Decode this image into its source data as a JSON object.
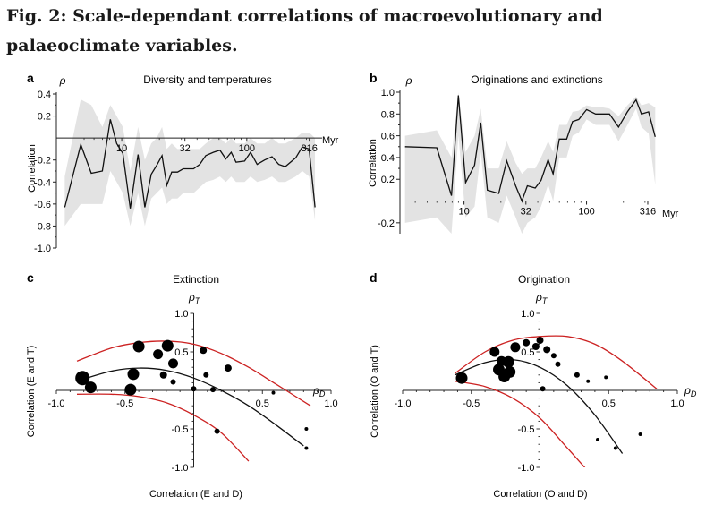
{
  "figure_title": "Fig. 2: Scale-dependant correlations of macroevolutionary and palaeoclimate variables.",
  "chart_data": [
    {
      "panel": "a",
      "type": "line",
      "title": "Diversity and temperatures",
      "ylabel": "Correlation",
      "ysymbol": "ρ",
      "xunit": "Myr",
      "xscale": "log",
      "xlim": [
        3,
        400
      ],
      "ylim": [
        -1.0,
        0.4
      ],
      "xticks": [
        10,
        32,
        100,
        316
      ],
      "yticks": [
        0.4,
        0.2,
        -0.2,
        -0.4,
        -0.6,
        -0.8,
        -1.0
      ],
      "yticklabels": [
        "0.4",
        "0.2",
        "-0.2",
        "-0.4",
        "-0.6",
        "-0.8",
        "-1.0"
      ],
      "series": [
        {
          "x": [
            3.5,
            4.7,
            5.7,
            7.0,
            8.1,
            9.1,
            10.2,
            11.7,
            13.5,
            15.3,
            17.2,
            19.0,
            21.0,
            22.9,
            25.1,
            27.9,
            31.0,
            34.1,
            37.5,
            42.0,
            47.0,
            54.0,
            61.0,
            68.0,
            75.0,
            82.0,
            96.0,
            107.0,
            121.0,
            139.0,
            159.0,
            180.0,
            203.0,
            246.0,
            278.0,
            315.0,
            351.0
          ],
          "y": [
            -0.63,
            -0.06,
            -0.32,
            -0.3,
            0.17,
            -0.05,
            -0.14,
            -0.64,
            -0.15,
            -0.63,
            -0.33,
            -0.25,
            -0.16,
            -0.43,
            -0.31,
            -0.31,
            -0.28,
            -0.28,
            -0.28,
            -0.24,
            -0.16,
            -0.13,
            -0.11,
            -0.19,
            -0.13,
            -0.22,
            -0.21,
            -0.13,
            -0.24,
            -0.2,
            -0.17,
            -0.24,
            -0.26,
            -0.18,
            -0.08,
            -0.1,
            -0.63
          ],
          "band_upper": [
            -0.35,
            0.35,
            0.3,
            0.1,
            0.3,
            0.2,
            0.1,
            -0.3,
            0.1,
            -0.2,
            -0.05,
            0.0,
            0.1,
            -0.1,
            -0.05,
            -0.1,
            -0.1,
            -0.1,
            -0.1,
            -0.1,
            -0.05,
            0.0,
            0.0,
            -0.05,
            0.0,
            -0.05,
            -0.05,
            0.0,
            -0.05,
            -0.05,
            0.0,
            -0.05,
            -0.05,
            0.0,
            0.05,
            0.05,
            0.0
          ],
          "band_lower": [
            -0.8,
            -0.6,
            -0.6,
            -0.6,
            -0.3,
            -0.4,
            -0.5,
            -0.8,
            -0.5,
            -0.8,
            -0.55,
            -0.5,
            -0.45,
            -0.6,
            -0.55,
            -0.55,
            -0.5,
            -0.5,
            -0.5,
            -0.45,
            -0.4,
            -0.38,
            -0.35,
            -0.4,
            -0.35,
            -0.4,
            -0.4,
            -0.35,
            -0.4,
            -0.38,
            -0.35,
            -0.4,
            -0.4,
            -0.35,
            -0.3,
            -0.35,
            -0.75
          ]
        }
      ]
    },
    {
      "panel": "b",
      "type": "line",
      "title": "Originations and extinctions",
      "ylabel": "Correlation",
      "ysymbol": "ρ",
      "xunit": "Myr",
      "xscale": "log",
      "xlim": [
        3,
        400
      ],
      "ylim": [
        -0.3,
        1.0
      ],
      "xticks": [
        10,
        32,
        100,
        316
      ],
      "yticks": [
        1.0,
        0.8,
        0.6,
        0.4,
        0.2,
        -0.2
      ],
      "yticklabels": [
        "1.0",
        "0.8",
        "0.6",
        "0.4",
        "0.2",
        "-0.2"
      ],
      "series": [
        {
          "x": [
            3.3,
            6.0,
            7.9,
            9.0,
            10.3,
            12.2,
            13.7,
            15.5,
            19.2,
            22.3,
            26.4,
            29.7,
            32.9,
            38.1,
            42.5,
            48.6,
            53.4,
            59.9,
            68.8,
            76.9,
            86.4,
            100.0,
            118.7,
            136.4,
            153.8,
            182.5,
            215.6,
            253.6,
            280.6,
            321.1,
            363.5
          ],
          "y": [
            0.5,
            0.49,
            0.05,
            0.97,
            0.17,
            0.33,
            0.72,
            0.1,
            0.07,
            0.37,
            0.14,
            0.0,
            0.14,
            0.12,
            0.19,
            0.38,
            0.25,
            0.57,
            0.57,
            0.73,
            0.75,
            0.84,
            0.8,
            0.8,
            0.8,
            0.68,
            0.82,
            0.93,
            0.8,
            0.82,
            0.59
          ],
          "band_upper": [
            0.6,
            0.65,
            0.4,
            1.0,
            0.45,
            0.6,
            0.85,
            0.3,
            0.3,
            0.55,
            0.35,
            0.25,
            0.3,
            0.3,
            0.4,
            0.55,
            0.45,
            0.7,
            0.7,
            0.82,
            0.83,
            0.88,
            0.86,
            0.86,
            0.85,
            0.78,
            0.88,
            0.96,
            0.88,
            0.9,
            0.86
          ],
          "band_lower": [
            -0.2,
            -0.15,
            -0.3,
            0.6,
            -0.15,
            -0.05,
            0.45,
            -0.15,
            -0.2,
            0.05,
            -0.15,
            -0.3,
            -0.2,
            -0.15,
            -0.05,
            0.15,
            0.0,
            0.4,
            0.4,
            0.6,
            0.63,
            0.75,
            0.7,
            0.7,
            0.7,
            0.55,
            0.7,
            0.85,
            0.68,
            0.62,
            0.15
          ]
        }
      ]
    },
    {
      "panel": "c",
      "type": "scatter",
      "title": "Extinction",
      "xlabel": "Correlation (E and D)",
      "ylabel": "Correlation (E and T)",
      "xsymbol": "ρD",
      "ysymbol": "ρT",
      "xlim": [
        -1.0,
        1.0
      ],
      "ylim": [
        -1.0,
        1.0
      ],
      "xticks": [
        -1.0,
        -0.5,
        0.5,
        1.0
      ],
      "xticklabels": [
        "-1.0",
        "-0.5",
        "0.5",
        "1.0"
      ],
      "yticks": [
        1.0,
        0.5,
        -0.5,
        -1.0
      ],
      "yticklabels": [
        "1.0",
        "0.5",
        "-0.5",
        "-1.0"
      ],
      "points": [
        {
          "x": -0.81,
          "y": 0.16,
          "size": 6
        },
        {
          "x": -0.75,
          "y": 0.04,
          "size": 5
        },
        {
          "x": -0.46,
          "y": 0.01,
          "size": 5
        },
        {
          "x": -0.44,
          "y": 0.21,
          "size": 5
        },
        {
          "x": -0.4,
          "y": 0.57,
          "size": 5
        },
        {
          "x": -0.26,
          "y": 0.47,
          "size": 4
        },
        {
          "x": -0.19,
          "y": 0.58,
          "size": 5
        },
        {
          "x": -0.15,
          "y": 0.35,
          "size": 4
        },
        {
          "x": -0.22,
          "y": 0.2,
          "size": 3
        },
        {
          "x": -0.15,
          "y": 0.11,
          "size": 2
        },
        {
          "x": 0.0,
          "y": 0.02,
          "size": 2
        },
        {
          "x": 0.07,
          "y": 0.52,
          "size": 3
        },
        {
          "x": 0.09,
          "y": 0.2,
          "size": 2
        },
        {
          "x": 0.14,
          "y": 0.01,
          "size": 2
        },
        {
          "x": 0.25,
          "y": 0.29,
          "size": 3
        },
        {
          "x": 0.17,
          "y": -0.53,
          "size": 2
        },
        {
          "x": 0.58,
          "y": -0.03,
          "size": 1
        },
        {
          "x": 0.82,
          "y": -0.5,
          "size": 1
        },
        {
          "x": 0.82,
          "y": -0.75,
          "size": 1
        }
      ],
      "curves": [
        {
          "color": "#cc2222",
          "x": [
            -0.85,
            -0.6,
            -0.4,
            -0.2,
            0.0,
            0.2,
            0.4,
            0.6,
            0.85
          ],
          "y": [
            0.38,
            0.55,
            0.62,
            0.64,
            0.6,
            0.48,
            0.3,
            0.08,
            -0.2
          ]
        },
        {
          "color": "#111111",
          "x": [
            -0.85,
            -0.6,
            -0.4,
            -0.2,
            0.0,
            0.2,
            0.4,
            0.6,
            0.8
          ],
          "y": [
            0.12,
            0.25,
            0.29,
            0.26,
            0.16,
            0.0,
            -0.2,
            -0.45,
            -0.72
          ]
        },
        {
          "color": "#cc2222",
          "x": [
            -0.85,
            -0.6,
            -0.4,
            -0.2,
            0.0,
            0.2,
            0.4
          ],
          "y": [
            -0.05,
            -0.05,
            -0.08,
            -0.16,
            -0.32,
            -0.55,
            -0.92
          ]
        }
      ]
    },
    {
      "panel": "d",
      "type": "scatter",
      "title": "Origination",
      "xlabel": "Correlation (O and D)",
      "ylabel": "Correlation (O and T)",
      "xsymbol": "ρD",
      "ysymbol": "ρT",
      "xlim": [
        -1.0,
        1.0
      ],
      "ylim": [
        -1.0,
        1.0
      ],
      "xticks": [
        -1.0,
        -0.5,
        0.5,
        1.0
      ],
      "xticklabels": [
        "-1.0",
        "-0.5",
        "0.5",
        "1.0"
      ],
      "yticks": [
        1.0,
        0.5,
        -0.5,
        -1.0
      ],
      "yticklabels": [
        "1.0",
        "0.5",
        "-0.5",
        "-1.0"
      ],
      "points": [
        {
          "x": -0.57,
          "y": 0.16,
          "size": 5
        },
        {
          "x": -0.33,
          "y": 0.5,
          "size": 4
        },
        {
          "x": -0.3,
          "y": 0.27,
          "size": 5
        },
        {
          "x": -0.28,
          "y": 0.38,
          "size": 4
        },
        {
          "x": -0.26,
          "y": 0.18,
          "size": 5
        },
        {
          "x": -0.22,
          "y": 0.24,
          "size": 5
        },
        {
          "x": -0.23,
          "y": 0.37,
          "size": 5
        },
        {
          "x": -0.18,
          "y": 0.56,
          "size": 4
        },
        {
          "x": -0.1,
          "y": 0.62,
          "size": 3
        },
        {
          "x": -0.03,
          "y": 0.57,
          "size": 3
        },
        {
          "x": 0.0,
          "y": 0.65,
          "size": 3
        },
        {
          "x": 0.05,
          "y": 0.53,
          "size": 3
        },
        {
          "x": 0.1,
          "y": 0.45,
          "size": 2
        },
        {
          "x": 0.13,
          "y": 0.34,
          "size": 2
        },
        {
          "x": 0.27,
          "y": 0.2,
          "size": 2
        },
        {
          "x": 0.02,
          "y": 0.02,
          "size": 2
        },
        {
          "x": 0.35,
          "y": 0.12,
          "size": 1
        },
        {
          "x": 0.48,
          "y": 0.17,
          "size": 1
        },
        {
          "x": 0.42,
          "y": -0.64,
          "size": 1
        },
        {
          "x": 0.55,
          "y": -0.75,
          "size": 1
        },
        {
          "x": 0.73,
          "y": -0.57,
          "size": 1
        }
      ],
      "curves": [
        {
          "color": "#cc2222",
          "x": [
            -0.62,
            -0.4,
            -0.2,
            0.0,
            0.2,
            0.4,
            0.6,
            0.85
          ],
          "y": [
            0.22,
            0.5,
            0.65,
            0.7,
            0.7,
            0.6,
            0.38,
            0.02
          ]
        },
        {
          "color": "#111111",
          "x": [
            -0.62,
            -0.4,
            -0.2,
            0.0,
            0.2,
            0.4,
            0.6
          ],
          "y": [
            0.2,
            0.36,
            0.4,
            0.3,
            0.06,
            -0.32,
            -0.82
          ]
        },
        {
          "color": "#cc2222",
          "x": [
            -0.62,
            -0.4,
            -0.2,
            0.0,
            0.2,
            0.35
          ],
          "y": [
            0.12,
            0.05,
            -0.1,
            -0.36,
            -0.75,
            -1.05
          ]
        }
      ]
    }
  ]
}
